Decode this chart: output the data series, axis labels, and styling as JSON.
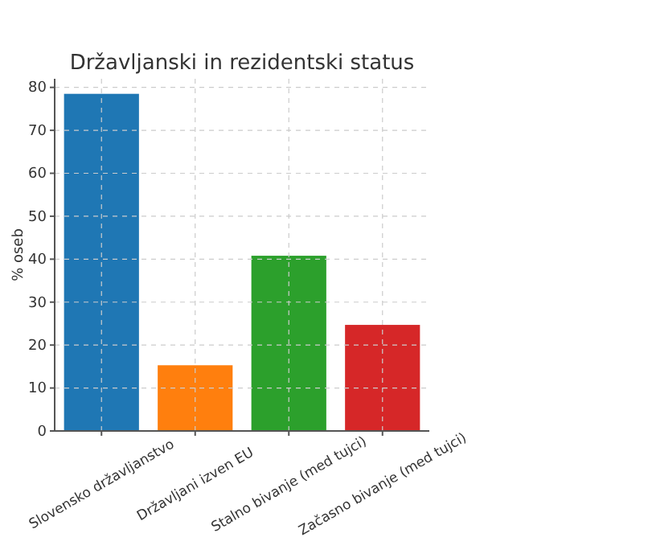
{
  "chart_data": {
    "type": "bar",
    "title": "Državljanski in rezidentski status",
    "ylabel": "% oseb",
    "categories": [
      "Slovensko državljanstvo",
      "Državljani izven EU",
      "Stalno bivanje (med tujci)",
      "Začasno bivanje (med tujci)"
    ],
    "values": [
      78.5,
      15.3,
      40.8,
      24.7
    ],
    "colors": [
      "#1f77b4",
      "#ff7f0e",
      "#2ca02c",
      "#d62728"
    ],
    "ylim": [
      0,
      82
    ],
    "yticks": [
      0,
      10,
      20,
      30,
      40,
      50,
      60,
      70,
      80
    ],
    "grid": true
  }
}
